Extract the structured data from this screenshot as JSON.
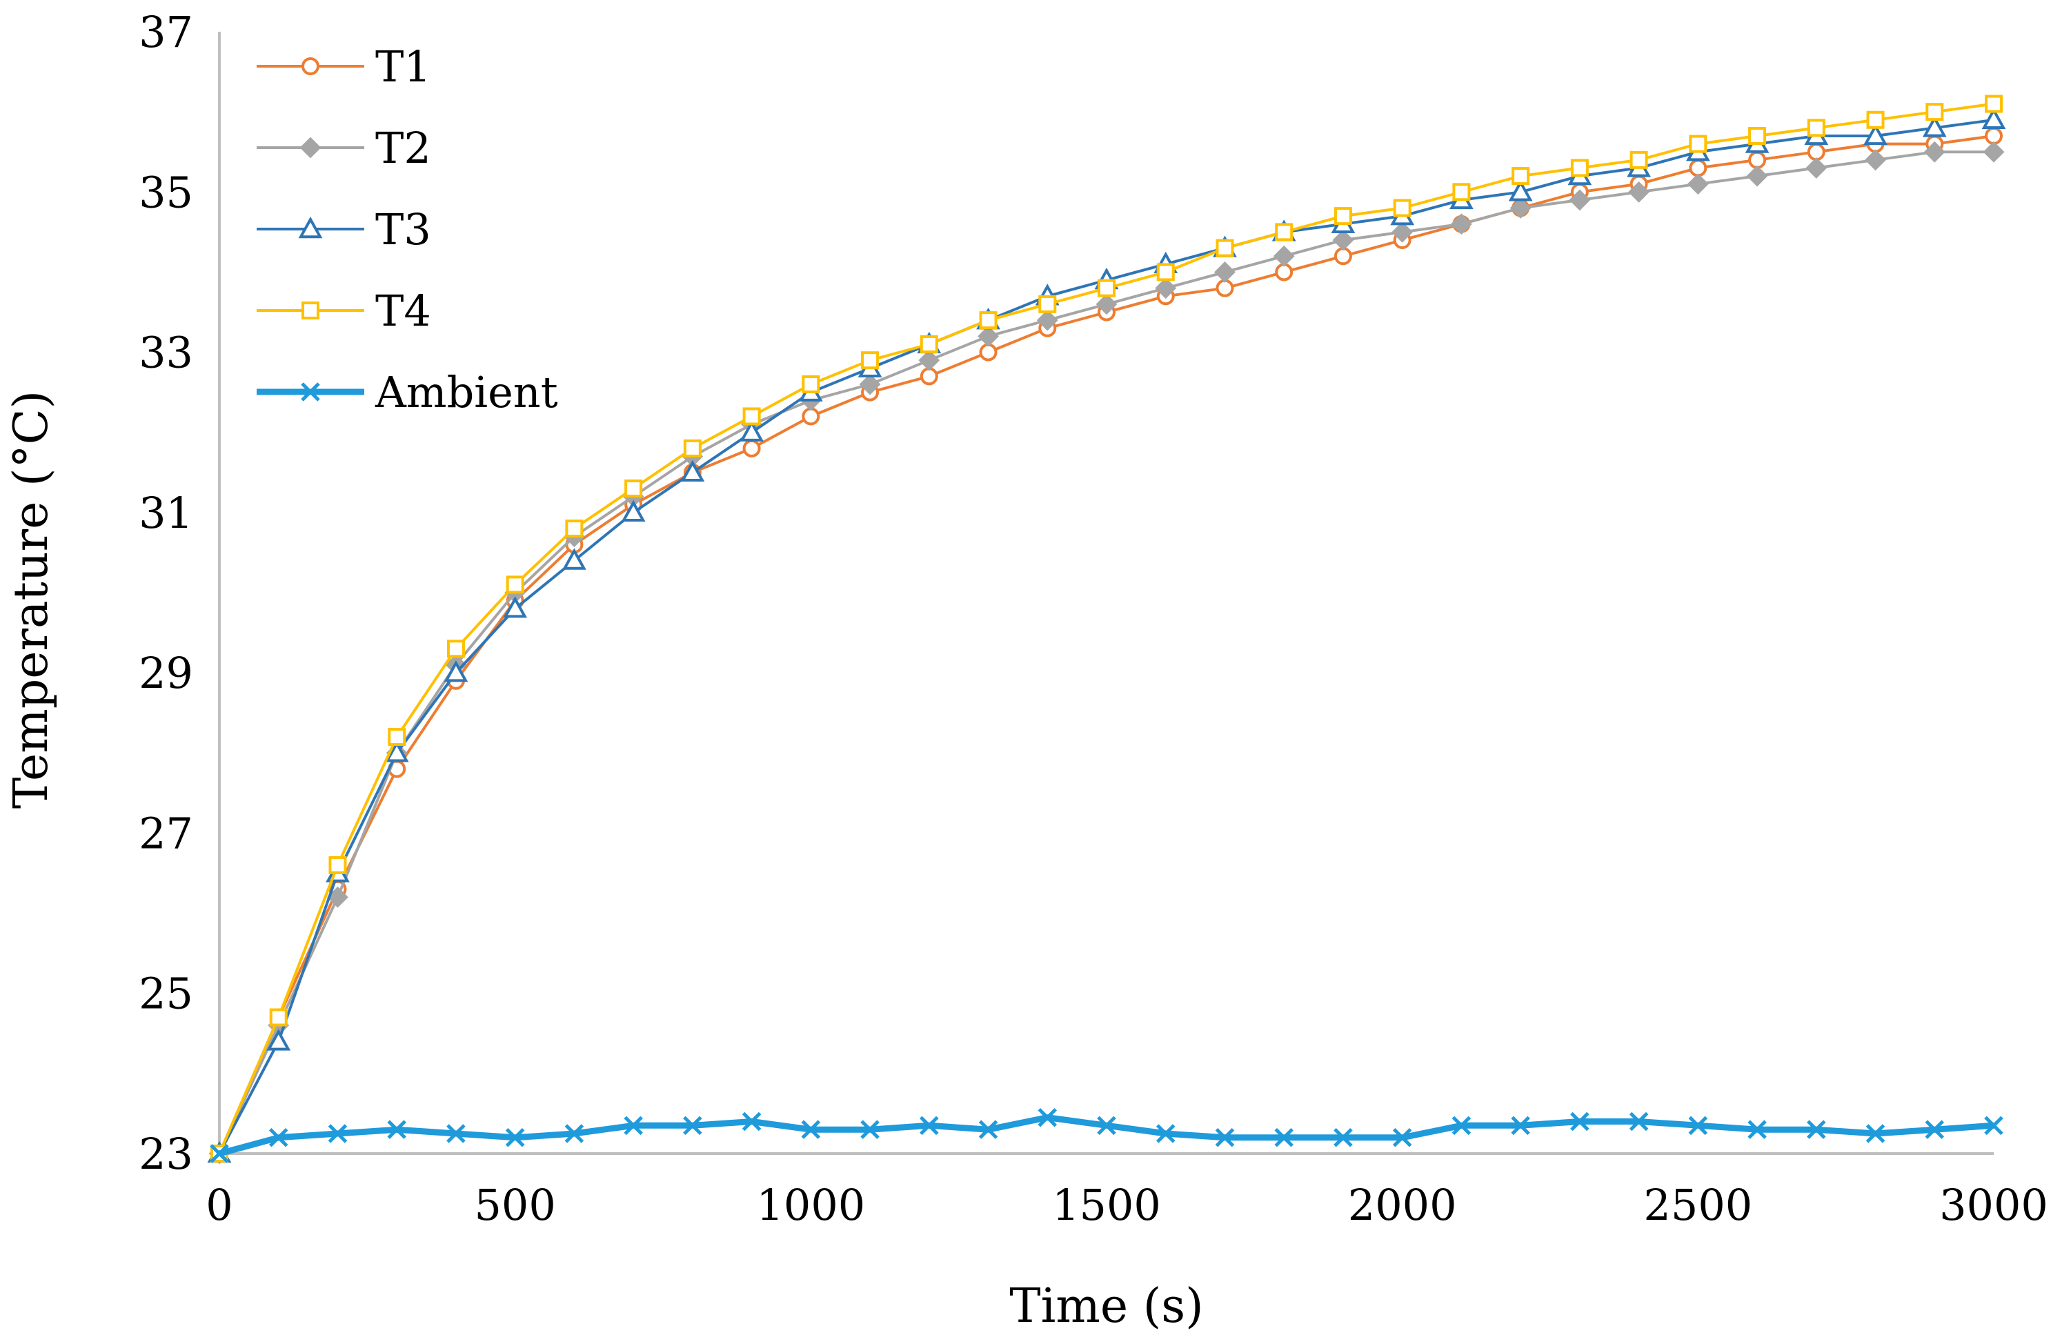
{
  "chart_data": {
    "type": "line",
    "title": "",
    "xlabel": "Time (s)",
    "ylabel": "Temperature (°C)",
    "xlim": [
      0,
      3000
    ],
    "ylim": [
      23,
      37
    ],
    "xticks": [
      0,
      500,
      1000,
      1500,
      2000,
      2500,
      3000
    ],
    "yticks": [
      23,
      25,
      27,
      29,
      31,
      33,
      35,
      37
    ],
    "xtick_labels": [
      "0",
      "500",
      "1000",
      "1500",
      "2000",
      "2500",
      "3000"
    ],
    "ytick_labels": [
      "23",
      "25",
      "27",
      "29",
      "31",
      "33",
      "35",
      "37"
    ],
    "grid": false,
    "legend_position": "top-left",
    "x": [
      0,
      100,
      200,
      300,
      400,
      500,
      600,
      700,
      800,
      900,
      1000,
      1100,
      1200,
      1300,
      1400,
      1500,
      1600,
      1700,
      1800,
      1900,
      2000,
      2100,
      2200,
      2300,
      2400,
      2500,
      2600,
      2700,
      2800,
      2900,
      3000
    ],
    "series": [
      {
        "name": "T1",
        "color": "#ED7D31",
        "marker": "circle",
        "values": [
          23.0,
          24.7,
          26.3,
          27.8,
          28.9,
          29.9,
          30.6,
          31.1,
          31.5,
          31.8,
          32.2,
          32.5,
          32.7,
          33.0,
          33.3,
          33.5,
          33.7,
          33.8,
          34.0,
          34.2,
          34.4,
          34.6,
          34.8,
          35.0,
          35.1,
          35.3,
          35.4,
          35.5,
          35.6,
          35.6,
          35.7
        ]
      },
      {
        "name": "T2",
        "color": "#A5A5A5",
        "marker": "diamond",
        "values": [
          23.0,
          24.6,
          26.2,
          28.0,
          29.1,
          30.0,
          30.7,
          31.2,
          31.7,
          32.1,
          32.4,
          32.6,
          32.9,
          33.2,
          33.4,
          33.6,
          33.8,
          34.0,
          34.2,
          34.4,
          34.5,
          34.6,
          34.8,
          34.9,
          35.0,
          35.1,
          35.2,
          35.3,
          35.4,
          35.5,
          35.5
        ]
      },
      {
        "name": "T3",
        "color": "#2E75B6",
        "marker": "triangle",
        "values": [
          23.0,
          24.4,
          26.5,
          28.0,
          29.0,
          29.8,
          30.4,
          31.0,
          31.5,
          32.0,
          32.5,
          32.8,
          33.1,
          33.4,
          33.7,
          33.9,
          34.1,
          34.3,
          34.5,
          34.6,
          34.7,
          34.9,
          35.0,
          35.2,
          35.3,
          35.5,
          35.6,
          35.7,
          35.7,
          35.8,
          35.9
        ]
      },
      {
        "name": "T4",
        "color": "#FFC000",
        "marker": "square",
        "values": [
          23.0,
          24.7,
          26.6,
          28.2,
          29.3,
          30.1,
          30.8,
          31.3,
          31.8,
          32.2,
          32.6,
          32.9,
          33.1,
          33.4,
          33.6,
          33.8,
          34.0,
          34.3,
          34.5,
          34.7,
          34.8,
          35.0,
          35.2,
          35.3,
          35.4,
          35.6,
          35.7,
          35.8,
          35.9,
          36.0,
          36.1
        ]
      },
      {
        "name": "Ambient",
        "color": "#1F9ADB",
        "marker": "x",
        "values": [
          23.0,
          23.2,
          23.25,
          23.3,
          23.25,
          23.2,
          23.25,
          23.35,
          23.35,
          23.4,
          23.3,
          23.3,
          23.35,
          23.3,
          23.45,
          23.35,
          23.25,
          23.2,
          23.2,
          23.2,
          23.2,
          23.35,
          23.35,
          23.4,
          23.4,
          23.35,
          23.3,
          23.3,
          23.25,
          23.3,
          23.35
        ]
      }
    ]
  }
}
